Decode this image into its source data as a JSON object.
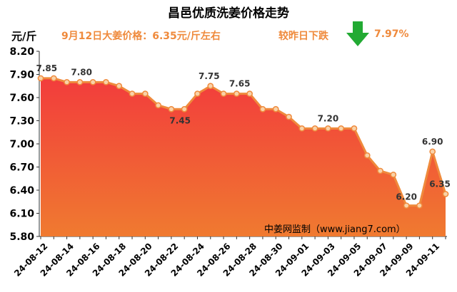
{
  "header": {
    "title": "昌邑优质洗姜价格走势",
    "unit": "元/斤",
    "price_info": "9月12日大姜价格：6.35元/斤左右",
    "change_label": "较昨日下跌",
    "change_pct": "7.97%",
    "arrow_icon": "down-arrow-icon",
    "arrow_color": "#22aa33"
  },
  "watermark": "中姜网监制（www.jiang7.com）",
  "colors": {
    "line": "#ef8a3c",
    "fill_top": "#f23c3c",
    "fill_bottom": "#f07a30",
    "marker_fill": "#f9d2a8"
  },
  "chart_data": {
    "type": "area",
    "title": "昌邑优质洗姜价格走势",
    "ylabel": "元/斤",
    "ylim": [
      5.8,
      8.2
    ],
    "yticks": [
      "5.80",
      "6.10",
      "6.40",
      "6.70",
      "7.00",
      "7.30",
      "7.60",
      "7.90",
      "8.20"
    ],
    "grid": false,
    "x": [
      "24-08-12",
      "24-08-13",
      "24-08-14",
      "24-08-15",
      "24-08-16",
      "24-08-17",
      "24-08-18",
      "24-08-19",
      "24-08-20",
      "24-08-21",
      "24-08-22",
      "24-08-23",
      "24-08-24",
      "24-08-25",
      "24-08-26",
      "24-08-27",
      "24-08-28",
      "24-08-29",
      "24-08-30",
      "24-08-31",
      "24-09-01",
      "24-09-02",
      "24-09-03",
      "24-09-04",
      "24-09-05",
      "24-09-06",
      "24-09-07",
      "24-09-08",
      "24-09-09",
      "24-09-10",
      "24-09-11",
      "24-09-12"
    ],
    "xticks": [
      "24-08-12",
      "24-08-14",
      "24-08-16",
      "24-08-18",
      "24-08-20",
      "24-08-22",
      "24-08-24",
      "24-08-26",
      "24-08-28",
      "24-08-30",
      "24-09-01",
      "24-09-03",
      "24-09-05",
      "24-09-07",
      "24-09-09",
      "24-09-11"
    ],
    "series": [
      {
        "values": [
          7.85,
          7.85,
          7.8,
          7.8,
          7.8,
          7.8,
          7.75,
          7.65,
          7.65,
          7.5,
          7.45,
          7.45,
          7.65,
          7.75,
          7.65,
          7.65,
          7.65,
          7.45,
          7.45,
          7.35,
          7.2,
          7.2,
          7.2,
          7.2,
          7.2,
          6.85,
          6.65,
          6.6,
          6.2,
          6.2,
          6.9,
          6.35
        ]
      }
    ],
    "data_labels": [
      {
        "x": "24-08-13",
        "text": "7.85"
      },
      {
        "x": "24-08-16",
        "text": "7.80"
      },
      {
        "x": "24-08-23",
        "text": "7.45"
      },
      {
        "x": "24-08-25",
        "text": "7.75"
      },
      {
        "x": "24-08-28",
        "text": "7.65"
      },
      {
        "x": "24-09-03",
        "text": "7.20"
      },
      {
        "x": "24-09-09",
        "text": "6.20"
      },
      {
        "x": "24-09-11",
        "text": "6.90"
      },
      {
        "x": "24-09-12",
        "text": "6.35"
      }
    ]
  }
}
